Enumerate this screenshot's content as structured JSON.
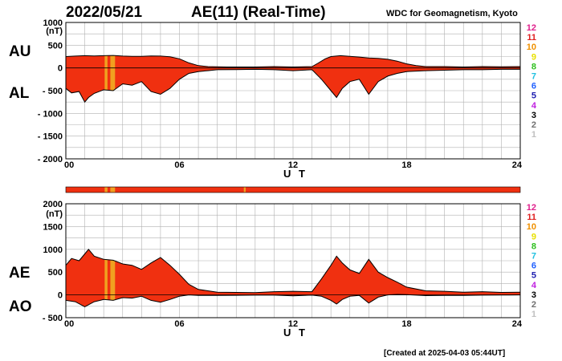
{
  "header": {
    "date": "2022/05/21",
    "title": "AE(11) (Real-Time)",
    "source": "WDC for Geomagnetism, Kyoto"
  },
  "footer": {
    "created": "[Created at 2025-04-03 05:44UT]"
  },
  "colors": {
    "fill": "#f03010",
    "highlight": "#f0a020",
    "grid": "#b0b0b0"
  },
  "chart_data": [
    {
      "type": "area",
      "panel": "top",
      "ylabel_unit": "(nT)",
      "ylim": [
        -2000,
        1000
      ],
      "yticks": [
        "1000",
        "500",
        "0",
        "- 500",
        "- 1000",
        "- 1500",
        "- 2000"
      ],
      "xlim": [
        0,
        24
      ],
      "xticks": [
        "00",
        "06",
        "12",
        "18",
        "24"
      ],
      "xlabel": "U T",
      "series_labels": [
        "AU",
        "AL"
      ],
      "legend": [
        "12",
        "11",
        "10",
        "9",
        "8",
        "7",
        "6",
        "5",
        "4",
        "3",
        "2",
        "1"
      ],
      "legend_colors": [
        "#e0208c",
        "#e02020",
        "#f09000",
        "#e8e000",
        "#30c020",
        "#20c0e0",
        "#2060ff",
        "#2020b0",
        "#c020e0",
        "#000000",
        "#707070",
        "#c0c0c0"
      ],
      "highlight_bands": [
        [
          2.05,
          2.2
        ],
        [
          2.35,
          2.6
        ]
      ],
      "AU": [
        [
          0,
          250
        ],
        [
          0.5,
          260
        ],
        [
          1,
          270
        ],
        [
          1.5,
          265
        ],
        [
          2,
          270
        ],
        [
          2.5,
          275
        ],
        [
          3,
          260
        ],
        [
          3.5,
          255
        ],
        [
          4,
          255
        ],
        [
          4.5,
          265
        ],
        [
          5,
          260
        ],
        [
          5.5,
          245
        ],
        [
          6,
          200
        ],
        [
          6.5,
          110
        ],
        [
          7,
          50
        ],
        [
          7.5,
          30
        ],
        [
          8,
          25
        ],
        [
          8.5,
          20
        ],
        [
          9,
          20
        ],
        [
          10,
          20
        ],
        [
          11,
          30
        ],
        [
          12,
          20
        ],
        [
          13,
          30
        ],
        [
          13.3,
          100
        ],
        [
          13.7,
          200
        ],
        [
          14,
          250
        ],
        [
          14.5,
          270
        ],
        [
          15,
          255
        ],
        [
          15.5,
          240
        ],
        [
          16,
          220
        ],
        [
          16.5,
          210
        ],
        [
          17,
          190
        ],
        [
          17.5,
          150
        ],
        [
          18,
          90
        ],
        [
          18.5,
          50
        ],
        [
          19,
          30
        ],
        [
          20,
          30
        ],
        [
          21,
          20
        ],
        [
          22,
          30
        ],
        [
          23,
          25
        ],
        [
          24,
          30
        ]
      ],
      "AL": [
        [
          0,
          -450
        ],
        [
          0.3,
          -550
        ],
        [
          0.7,
          -520
        ],
        [
          1,
          -750
        ],
        [
          1.2,
          -650
        ],
        [
          1.5,
          -560
        ],
        [
          2,
          -480
        ],
        [
          2.5,
          -500
        ],
        [
          3,
          -350
        ],
        [
          3.5,
          -380
        ],
        [
          4,
          -300
        ],
        [
          4.5,
          -520
        ],
        [
          5,
          -580
        ],
        [
          5.5,
          -450
        ],
        [
          6,
          -250
        ],
        [
          6.5,
          -120
        ],
        [
          7,
          -80
        ],
        [
          7.5,
          -60
        ],
        [
          8,
          -40
        ],
        [
          9,
          -35
        ],
        [
          10,
          -30
        ],
        [
          11,
          -40
        ],
        [
          12,
          -60
        ],
        [
          13,
          -40
        ],
        [
          13.5,
          -250
        ],
        [
          14,
          -500
        ],
        [
          14.3,
          -650
        ],
        [
          14.6,
          -450
        ],
        [
          15,
          -300
        ],
        [
          15.5,
          -250
        ],
        [
          16,
          -580
        ],
        [
          16.5,
          -300
        ],
        [
          17,
          -180
        ],
        [
          17.5,
          -120
        ],
        [
          18,
          -80
        ],
        [
          19,
          -60
        ],
        [
          20,
          -50
        ],
        [
          21,
          -40
        ],
        [
          22,
          -40
        ],
        [
          23,
          -30
        ],
        [
          24,
          -30
        ]
      ]
    },
    {
      "type": "area",
      "panel": "bottom",
      "ylabel_unit": "(nT)",
      "ylim": [
        -500,
        2000
      ],
      "yticks": [
        "2000",
        "1500",
        "1000",
        "500",
        "0",
        "- 500"
      ],
      "xlim": [
        0,
        24
      ],
      "xticks": [
        "00",
        "06",
        "12",
        "18",
        "24"
      ],
      "xlabel": "U T",
      "series_labels": [
        "AE",
        "AO"
      ],
      "legend": [
        "12",
        "11",
        "10",
        "9",
        "8",
        "7",
        "6",
        "5",
        "4",
        "3",
        "2",
        "1"
      ],
      "legend_colors": [
        "#e0208c",
        "#e02020",
        "#f09000",
        "#e8e000",
        "#30c020",
        "#20c0e0",
        "#2060ff",
        "#2020b0",
        "#c020e0",
        "#000000",
        "#707070",
        "#c0c0c0"
      ],
      "highlight_bands": [
        [
          2.05,
          2.2
        ],
        [
          2.35,
          2.6
        ]
      ],
      "AE": [
        [
          0,
          650
        ],
        [
          0.3,
          800
        ],
        [
          0.7,
          750
        ],
        [
          1,
          900
        ],
        [
          1.2,
          1000
        ],
        [
          1.5,
          850
        ],
        [
          2,
          780
        ],
        [
          2.5,
          760
        ],
        [
          3,
          680
        ],
        [
          3.5,
          650
        ],
        [
          4,
          560
        ],
        [
          4.5,
          700
        ],
        [
          5,
          820
        ],
        [
          5.5,
          650
        ],
        [
          6,
          450
        ],
        [
          6.5,
          230
        ],
        [
          7,
          120
        ],
        [
          7.5,
          90
        ],
        [
          8,
          60
        ],
        [
          9,
          55
        ],
        [
          10,
          50
        ],
        [
          11,
          70
        ],
        [
          12,
          80
        ],
        [
          13,
          70
        ],
        [
          13.5,
          350
        ],
        [
          14,
          650
        ],
        [
          14.3,
          850
        ],
        [
          14.6,
          700
        ],
        [
          15,
          550
        ],
        [
          15.5,
          470
        ],
        [
          16,
          780
        ],
        [
          16.5,
          500
        ],
        [
          17,
          380
        ],
        [
          17.5,
          280
        ],
        [
          18,
          170
        ],
        [
          19,
          90
        ],
        [
          20,
          80
        ],
        [
          21,
          60
        ],
        [
          22,
          70
        ],
        [
          23,
          55
        ],
        [
          24,
          60
        ]
      ],
      "AO": [
        [
          0,
          -120
        ],
        [
          0.5,
          -150
        ],
        [
          1,
          -260
        ],
        [
          1.5,
          -150
        ],
        [
          2,
          -100
        ],
        [
          2.5,
          -120
        ],
        [
          3,
          -60
        ],
        [
          3.5,
          -70
        ],
        [
          4,
          -30
        ],
        [
          4.5,
          -120
        ],
        [
          5,
          -160
        ],
        [
          5.5,
          -100
        ],
        [
          6,
          -30
        ],
        [
          6.5,
          0
        ],
        [
          7,
          -10
        ],
        [
          8,
          -10
        ],
        [
          9,
          -8
        ],
        [
          10,
          -5
        ],
        [
          11,
          -5
        ],
        [
          12,
          -20
        ],
        [
          13,
          -5
        ],
        [
          13.5,
          -30
        ],
        [
          14,
          -120
        ],
        [
          14.3,
          -200
        ],
        [
          14.6,
          -100
        ],
        [
          15,
          -30
        ],
        [
          15.5,
          -10
        ],
        [
          16,
          -180
        ],
        [
          16.5,
          -50
        ],
        [
          17,
          0
        ],
        [
          17.5,
          10
        ],
        [
          18,
          5
        ],
        [
          19,
          -15
        ],
        [
          20,
          -10
        ],
        [
          21,
          -10
        ],
        [
          22,
          -5
        ],
        [
          23,
          -3
        ],
        [
          24,
          0
        ]
      ]
    }
  ],
  "status_bar": {
    "type": "bar",
    "xlim": [
      0,
      24
    ],
    "highlight_bands": [
      [
        2.05,
        2.2
      ],
      [
        2.35,
        2.6
      ],
      [
        9.4,
        9.5
      ]
    ]
  }
}
